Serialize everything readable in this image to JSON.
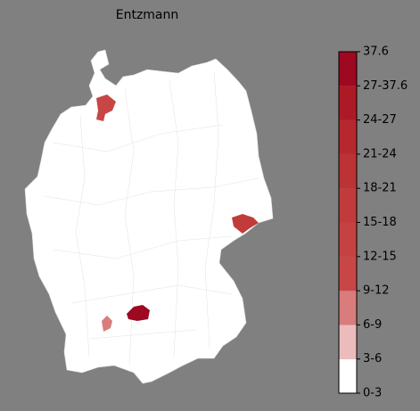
{
  "title": "Entzmann",
  "colorbar": {
    "labels": [
      "0-3",
      "3-6",
      "6-9",
      "9-12",
      "12-15",
      "15-18",
      "18-21",
      "21-24",
      "24-27",
      "27-37.6",
      "37.6"
    ],
    "colors": [
      "#ffffff",
      "#ecbcbc",
      "#d87c7c",
      "#c94646",
      "#c64141",
      "#c23b3b",
      "#bd3234",
      "#b6282d",
      "#ad1a26",
      "#9e0821"
    ]
  }
}
